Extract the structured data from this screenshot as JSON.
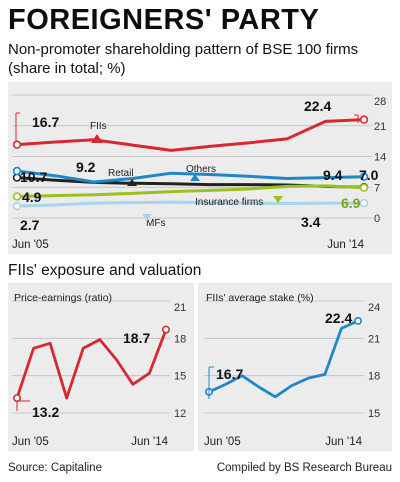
{
  "header": {
    "title": "FOREIGNERS' PARTY",
    "subtitle": "Non-promoter shareholding pattern of BSE 100 firms (share in total; %)"
  },
  "section_title": "FIIs' exposure and valuation",
  "footer": {
    "source": "Source: Capitaline",
    "credit": "Compiled by BS Research Bureau"
  },
  "chart_data": [
    {
      "type": "line",
      "title": "Non-promoter shareholding pattern of BSE 100 firms",
      "x_start_label": "Jun '05",
      "x_end_label": "Jun '14",
      "y_ticks": [
        0,
        7,
        14,
        21,
        28
      ],
      "ylim": [
        0,
        28
      ],
      "grid": true,
      "x": [
        "Jun '05",
        "",
        "",
        "",
        "",
        "",
        "",
        "",
        "",
        "Jun '14"
      ],
      "series": [
        {
          "name": "FIIs",
          "color": "#d7282f",
          "values": [
            16.7,
            17.3,
            17.8,
            16.6,
            15.4,
            16.3,
            17.1,
            18.0,
            22.0,
            22.4
          ],
          "start_label": "16.7",
          "end_label": "22.4"
        },
        {
          "name": "Retail",
          "color": "#222222",
          "values": [
            9.2,
            8.6,
            8.1,
            7.9,
            7.8,
            7.6,
            7.6,
            7.5,
            7.2,
            7.0
          ],
          "start_label": "9.2",
          "end_label": "7.0"
        },
        {
          "name": "Others",
          "color": "#1f86c8",
          "values": [
            10.7,
            9.6,
            8.2,
            9.0,
            10.2,
            9.9,
            9.5,
            9.0,
            9.2,
            9.4
          ],
          "start_label": "10.7",
          "end_label": "9.4"
        },
        {
          "name": "Insurance firms",
          "color": "#9cc11e",
          "values": [
            4.9,
            5.1,
            5.3,
            5.6,
            6.0,
            6.3,
            6.6,
            7.2,
            7.3,
            6.9
          ],
          "start_label": "4.9",
          "end_label": "6.9"
        },
        {
          "name": "MFs",
          "color": "#a7d4ee",
          "values": [
            2.7,
            3.0,
            3.4,
            3.5,
            3.6,
            3.5,
            3.4,
            3.3,
            3.4,
            3.4
          ],
          "start_label": "2.7",
          "end_label": "3.4"
        }
      ]
    },
    {
      "type": "line",
      "title": "Price-earnings (ratio)",
      "x_start_label": "Jun '05",
      "x_end_label": "Jun '14",
      "y_ticks": [
        12,
        15,
        18,
        21
      ],
      "ylim": [
        12,
        21
      ],
      "grid": true,
      "x": [
        "Jun '05",
        "",
        "",
        "",
        "",
        "",
        "",
        "",
        "",
        "Jun '14"
      ],
      "series": [
        {
          "name": "",
          "color": "#d7282f",
          "values": [
            13.2,
            17.2,
            17.6,
            13.2,
            17.2,
            17.9,
            16.3,
            14.3,
            15.2,
            18.7
          ],
          "start_label": "13.2",
          "end_label": "18.7"
        }
      ]
    },
    {
      "type": "line",
      "title": "FIIs' average stake (%)",
      "x_start_label": "Jun '05",
      "x_end_label": "Jun '14",
      "y_ticks": [
        15,
        18,
        21,
        24
      ],
      "ylim": [
        15,
        24
      ],
      "grid": true,
      "x": [
        "Jun '05",
        "",
        "",
        "",
        "",
        "",
        "",
        "",
        "",
        "Jun '14"
      ],
      "series": [
        {
          "name": "",
          "color": "#1f86c8",
          "values": [
            16.7,
            17.3,
            18.0,
            17.1,
            16.3,
            17.2,
            17.8,
            18.1,
            21.8,
            22.4
          ],
          "start_label": "16.7",
          "end_label": "22.4"
        }
      ]
    }
  ]
}
